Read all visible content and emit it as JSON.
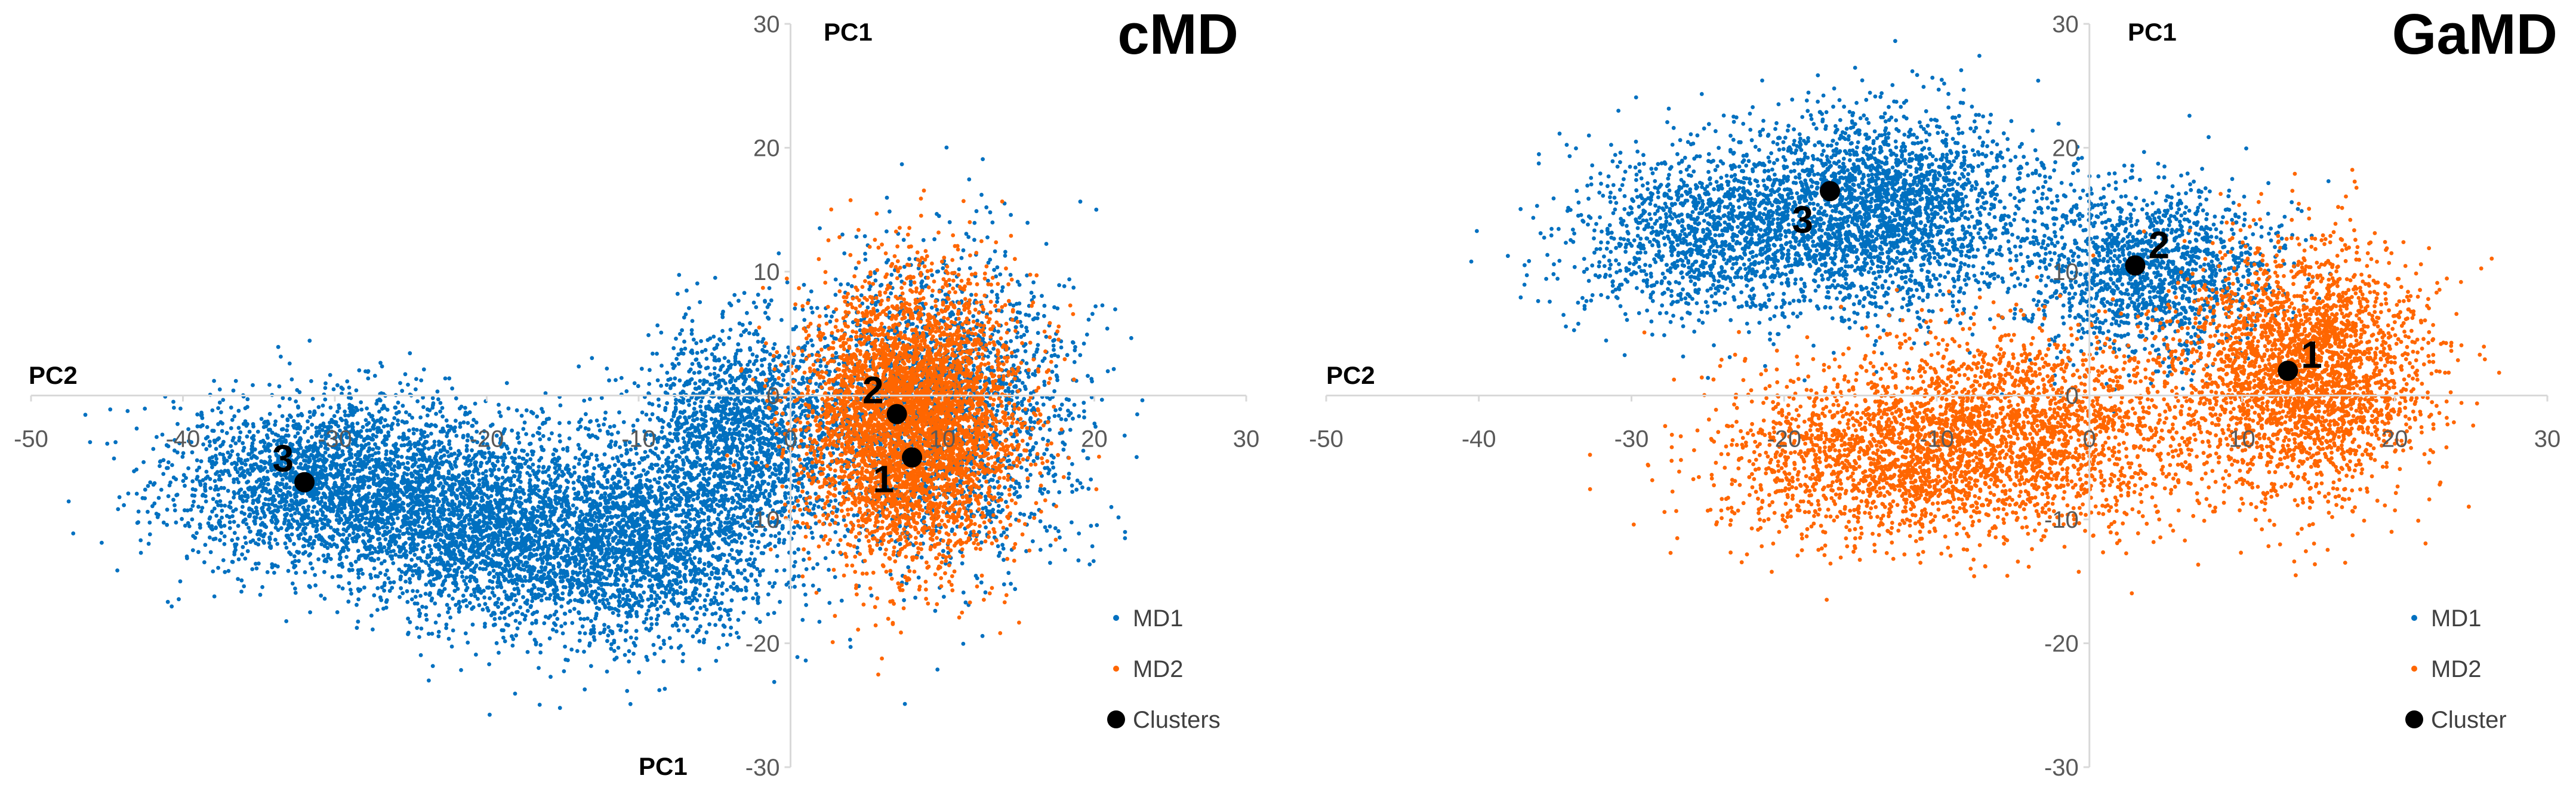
{
  "chart_data": [
    {
      "type": "scatter",
      "title": "cMD",
      "xlabel": "PC2",
      "ylabel": "PC1",
      "ylabel_bottom": "PC1",
      "xlim": [
        -50,
        30
      ],
      "ylim": [
        -30,
        30
      ],
      "xticks": [
        -50,
        -40,
        -30,
        -20,
        -10,
        0,
        10,
        20,
        30
      ],
      "yticks": [
        -30,
        -20,
        -10,
        0,
        10,
        20,
        30
      ],
      "xtick_labels": [
        "-50",
        "-40",
        "-30",
        "-20",
        "-10",
        "0",
        "10",
        "20",
        "30"
      ],
      "ytick_labels": [
        "-30",
        "-20",
        "-10",
        "0",
        "10",
        "20",
        "30"
      ],
      "grid": false,
      "legend": "bottom-right",
      "series": [
        {
          "name": "MD1",
          "color": "#0070C0",
          "marker": "dot",
          "clouds": [
            {
              "cx": -30,
              "cy": -7,
              "sx": 5.5,
              "sy": 3.5,
              "n": 2600
            },
            {
              "cx": -20,
              "cy": -11,
              "sx": 4.5,
              "sy": 3.8,
              "n": 2000
            },
            {
              "cx": -10,
              "cy": -12,
              "sx": 4.5,
              "sy": 4.0,
              "n": 2200
            },
            {
              "cx": -3,
              "cy": -3,
              "sx": 3.5,
              "sy": 4.5,
              "n": 1700
            },
            {
              "cx": 10,
              "cy": -1,
              "sx": 4.5,
              "sy": 6.0,
              "n": 2200
            }
          ]
        },
        {
          "name": "MD2",
          "color": "#FF6600",
          "marker": "dot",
          "clouds": [
            {
              "cx": 8,
              "cy": -2,
              "sx": 3.5,
              "sy": 5.5,
              "n": 4500
            }
          ]
        },
        {
          "name": "Clusters",
          "color": "#000000",
          "marker": "circle",
          "points": [
            {
              "label": "1",
              "x": 8,
              "y": -5
            },
            {
              "label": "2",
              "x": 7,
              "y": -1.5
            },
            {
              "label": "3",
              "x": -32,
              "y": -7
            }
          ]
        }
      ]
    },
    {
      "type": "scatter",
      "title": "GaMD",
      "xlabel": "PC2",
      "ylabel": "PC1",
      "xlim": [
        -50,
        30
      ],
      "ylim": [
        -30,
        30
      ],
      "xticks": [
        -50,
        -40,
        -30,
        -20,
        -10,
        0,
        10,
        20,
        30
      ],
      "yticks": [
        -30,
        -20,
        -10,
        0,
        10,
        20,
        30
      ],
      "xtick_labels": [
        "-50",
        "-40",
        "-30",
        "-20",
        "-10",
        "0",
        "10",
        "20",
        "30"
      ],
      "ytick_labels": [
        "-30",
        "-20",
        "-10",
        "0",
        "10",
        "20",
        "30"
      ],
      "grid": false,
      "legend": "bottom-right",
      "series": [
        {
          "name": "MD1",
          "color": "#0070C0",
          "marker": "dot",
          "clouds": [
            {
              "cx": -25,
              "cy": 13,
              "sx": 4.5,
              "sy": 3.5,
              "n": 1300
            },
            {
              "cx": -14,
              "cy": 15,
              "sx": 5.0,
              "sy": 4.0,
              "n": 2600
            },
            {
              "cx": 4,
              "cy": 10,
              "sx": 4.0,
              "sy": 3.5,
              "n": 1500
            }
          ]
        },
        {
          "name": "MD2",
          "color": "#FF6600",
          "marker": "dot",
          "clouds": [
            {
              "cx": -14,
              "cy": -5,
              "sx": 5.5,
              "sy": 3.5,
              "n": 1500
            },
            {
              "cx": -4,
              "cy": -3,
              "sx": 6.0,
              "sy": 4.0,
              "n": 2000
            },
            {
              "cx": 14,
              "cy": 2,
              "sx": 4.0,
              "sy": 5.0,
              "n": 2800
            }
          ]
        },
        {
          "name": "Cluster",
          "color": "#000000",
          "marker": "circle",
          "points": [
            {
              "label": "1",
              "x": 13,
              "y": 2
            },
            {
              "label": "2",
              "x": 3,
              "y": 10.5
            },
            {
              "label": "3",
              "x": -17,
              "y": 16.5
            }
          ]
        }
      ]
    }
  ]
}
